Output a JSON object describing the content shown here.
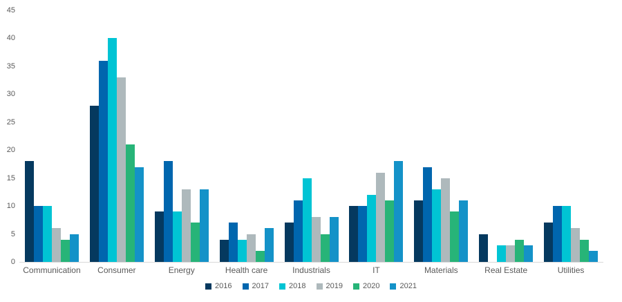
{
  "chart_data": {
    "type": "bar",
    "title": "",
    "categories": [
      "Communication",
      "Consumer",
      "Energy",
      "Health care",
      "Industrials",
      "IT",
      "Materials",
      "Real Estate",
      "Utilities"
    ],
    "series": [
      {
        "name": "2016",
        "color": "#05395f",
        "values": [
          18,
          28,
          9,
          4,
          7,
          10,
          11,
          5,
          7
        ]
      },
      {
        "name": "2017",
        "color": "#0066ae",
        "values": [
          10,
          36,
          18,
          7,
          11,
          10,
          17,
          0,
          10
        ]
      },
      {
        "name": "2018",
        "color": "#00c4d4",
        "values": [
          10,
          40,
          9,
          4,
          15,
          12,
          13,
          3,
          10
        ]
      },
      {
        "name": "2019",
        "color": "#aeb9bc",
        "values": [
          6,
          33,
          13,
          5,
          8,
          16,
          15,
          3,
          6
        ]
      },
      {
        "name": "2020",
        "color": "#27b478",
        "values": [
          4,
          21,
          7,
          2,
          5,
          11,
          9,
          4,
          4
        ]
      },
      {
        "name": "2021",
        "color": "#1492c8",
        "values": [
          5,
          17,
          13,
          6,
          8,
          18,
          11,
          3,
          2
        ]
      }
    ],
    "ylim": [
      0,
      45
    ],
    "yticks": [
      0,
      5,
      10,
      15,
      20,
      25,
      30,
      35,
      40,
      45
    ],
    "grid": false,
    "legend_position": "bottom"
  },
  "colors": {
    "axis_text": "#595959",
    "baseline": "#d9d9d9",
    "background": "#ffffff"
  }
}
